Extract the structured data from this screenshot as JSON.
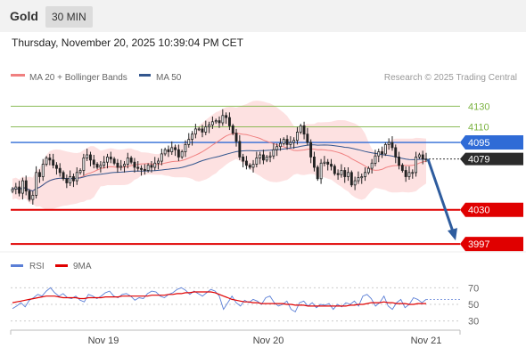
{
  "header": {
    "symbol": "Gold",
    "interval": "30 MIN"
  },
  "chart_data": [
    {
      "type": "candlestick",
      "title": "Thursday, November 20, 2025 10:39:04 PM CET",
      "source": "Research © 2025 Trading Central",
      "legend": [
        {
          "name": "MA 20 + Bollinger Bands",
          "color": "#f08080"
        },
        {
          "name": "MA 50",
          "color": "#33568e"
        }
      ],
      "ylim": [
        3992,
        4150
      ],
      "x_ticks": [
        "Nov 19",
        "Nov 20",
        "Nov 21"
      ],
      "last_price": 4079,
      "levels": [
        {
          "value": 4130,
          "label": "4130",
          "color": "#7cb342",
          "style": "resistance"
        },
        {
          "value": 4110,
          "label": "4110",
          "color": "#7cb342",
          "style": "resistance"
        },
        {
          "value": 4095,
          "label": "4095",
          "color": "#2f6bd6",
          "style": "pivot"
        },
        {
          "value": 4030,
          "label": "4030",
          "color": "#e00000",
          "style": "support"
        },
        {
          "value": 3997,
          "label": "3997",
          "color": "#e00000",
          "style": "support"
        }
      ],
      "forecast": {
        "from": 4079,
        "to": 3997,
        "color": "#2e5c9e"
      },
      "close_series": [
        4050,
        4052,
        4046,
        4058,
        4048,
        4040,
        4044,
        4066,
        4062,
        4074,
        4080,
        4078,
        4073,
        4070,
        4066,
        4060,
        4056,
        4062,
        4058,
        4066,
        4068,
        4080,
        4083,
        4078,
        4074,
        4071,
        4073,
        4076,
        4081,
        4079,
        4075,
        4071,
        4072,
        4074,
        4080,
        4076,
        4071,
        4070,
        4069,
        4068,
        4073,
        4071,
        4075,
        4077,
        4084,
        4088,
        4086,
        4090,
        4088,
        4081,
        4086,
        4093,
        4098,
        4103,
        4108,
        4108,
        4105,
        4110,
        4112,
        4115,
        4116,
        4114,
        4121,
        4119,
        4111,
        4104,
        4096,
        4081,
        4077,
        4073,
        4071,
        4074,
        4080,
        4083,
        4078,
        4081,
        4082,
        4088,
        4091,
        4094,
        4098,
        4093,
        4095,
        4097,
        4105,
        4111,
        4103,
        4095,
        4081,
        4071,
        4060,
        4075,
        4076,
        4074,
        4072,
        4065,
        4064,
        4068,
        4062,
        4066,
        4054,
        4058,
        4061,
        4062,
        4066,
        4070,
        4075,
        4082,
        4086,
        4084,
        4093,
        4095,
        4090,
        4081,
        4073,
        4068,
        4062,
        4066,
        4066,
        4081,
        4083,
        4079,
        4079
      ]
    },
    {
      "type": "line",
      "legend": [
        {
          "name": "RSI",
          "color": "#5b7fd6"
        },
        {
          "name": "9MA",
          "color": "#e00000"
        }
      ],
      "ylim": [
        20,
        80
      ],
      "y_ticks": [
        70,
        50,
        30
      ],
      "series": [
        {
          "name": "RSI",
          "values": [
            45,
            48,
            52,
            47,
            55,
            58,
            62,
            60,
            66,
            70,
            64,
            60,
            63,
            58,
            57,
            60,
            55,
            53,
            62,
            60,
            57,
            60,
            64,
            66,
            60,
            58,
            62,
            63,
            60,
            55,
            58,
            57,
            63,
            66,
            65,
            60,
            58,
            62,
            64,
            68,
            70,
            67,
            62,
            66,
            63,
            60,
            64,
            68,
            66,
            60,
            44,
            52,
            60,
            52,
            48,
            55,
            52,
            56,
            54,
            50,
            58,
            60,
            52,
            48,
            50,
            54,
            44,
            41,
            52,
            54,
            48,
            52,
            46,
            50,
            49,
            51,
            44,
            50,
            47,
            52,
            50,
            54,
            48,
            60,
            62,
            57,
            48,
            52,
            60,
            48,
            44,
            52,
            56,
            46,
            50,
            58,
            56,
            52,
            56
          ]
        },
        {
          "name": "9MA",
          "values": [
            52,
            53,
            54,
            55,
            56,
            57,
            58,
            59,
            60,
            60,
            60,
            59,
            58,
            58,
            58,
            58,
            57,
            57,
            58,
            58,
            58,
            58,
            59,
            59,
            59,
            59,
            60,
            60,
            60,
            60,
            60,
            60,
            60,
            61,
            61,
            61,
            61,
            62,
            62,
            63,
            63,
            64,
            64,
            65,
            65,
            65,
            65,
            65,
            64,
            62,
            60,
            58,
            56,
            55,
            54,
            53,
            53,
            52,
            52,
            51,
            51,
            51,
            51,
            51,
            51,
            50,
            50,
            49,
            49,
            49,
            48,
            48,
            48,
            48,
            48,
            48,
            48,
            48,
            48,
            48,
            49,
            49,
            50,
            50,
            51,
            52,
            52,
            52,
            53,
            52,
            52,
            51,
            51,
            51,
            50,
            50,
            51,
            51,
            51
          ]
        }
      ]
    }
  ]
}
